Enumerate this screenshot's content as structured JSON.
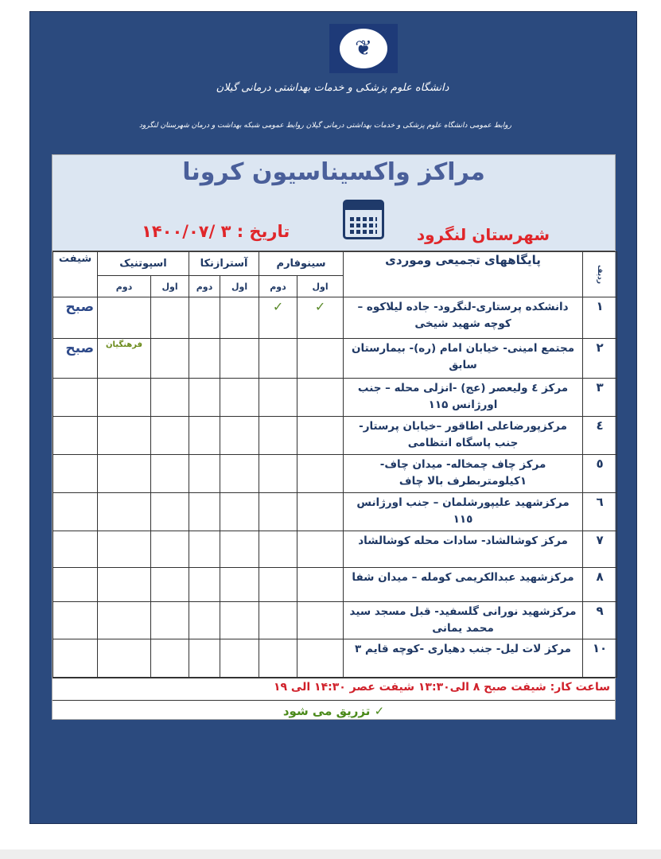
{
  "header": {
    "university": "دانشگاه علوم پزشکی و خدمات بهداشتی درمانی گیلان",
    "subtitle": "روابط عمومی دانشگاه علوم پزشکی و خدمات بهداشتی درمانی گیلان    روابط عمومی شبکه بهداشت و درمان شهرستان لنگرود",
    "logo_icon": "university-emblem"
  },
  "title": "مراکز واکسیناسیون کرونا",
  "city": "شهرستان لنگرود",
  "date": "تاریخ : ۳ /۱۴۰۰/۰۷",
  "table": {
    "headers": {
      "num": "ردیف",
      "name": "پایگاههای تجمیعی وموردی",
      "sinopharm": "سینوفارم",
      "astrazeneca": "آسترازنکا",
      "sputnik": "اسپوتنیک",
      "shift": "شیفت",
      "first": "اول",
      "second": "دوم"
    },
    "rows": [
      {
        "num": "۱",
        "name": "دانشکده پرستاری-لنگرود- جاده لیلاکوه – کوچه شهید شیخی",
        "sino1": "✓",
        "sino2": "✓",
        "astra1": "",
        "astra2": "",
        "sput1": "",
        "sput2": "",
        "shift": "صبح"
      },
      {
        "num": "۲",
        "name": "مجتمع امینی- خیابان امام (ره)- بیمارستان سابق",
        "sino1": "",
        "sino2": "",
        "astra1": "",
        "astra2": "",
        "sput1": "",
        "sput2": "فرهنگیان",
        "shift": "صبح"
      },
      {
        "num": "۳",
        "name": "مرکز ٤ ولیعصر (عج) -انزلی محله – جنب اورژانس ۱۱۵"
      },
      {
        "num": "٤",
        "name": "مرکزپورضاعلی اطاقور –خیابان پرستار- جنب پاسگاه انتظامی"
      },
      {
        "num": "٥",
        "name": "مرکز چاف چمخاله- میدان چاف- ۱کیلومتربطرف بالا چاف"
      },
      {
        "num": "٦",
        "name": "مرکزشهید علیپورشلمان – جنب اورژانس ۱۱٥"
      },
      {
        "num": "٧",
        "name": "مرکز کوشالشاد- سادات محله کوشالشاد"
      },
      {
        "num": "٨",
        "name": "مرکزشهید عبدالکریمی کومله – میدان شفا"
      },
      {
        "num": "٩",
        "name": "مرکزشهید نورانی گلسفید- قبل مسجد سید محمد یمانی"
      },
      {
        "num": "۱۰",
        "name": "مرکز لات لیل- جنب دهیاری -کوچه قایم ۳"
      }
    ]
  },
  "footer": {
    "hours": "ساعت کار:  شیفت صبح  ۸ الی۱۳:۳۰   شیفت عصر  ۱۴:۳۰ الی ۱۹",
    "legend": "✓   تزریق می شود"
  }
}
